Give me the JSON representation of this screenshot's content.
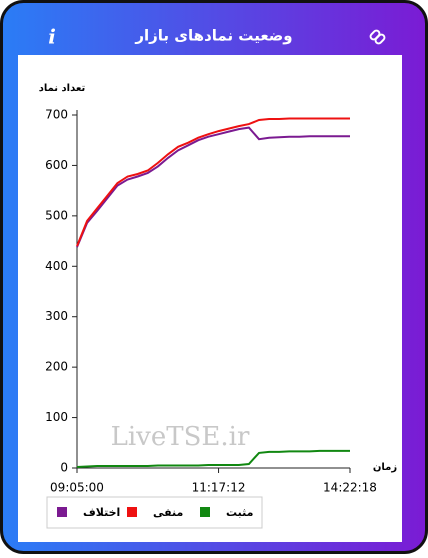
{
  "header": {
    "title": "وضعیت نمادهای بازار",
    "info": "i"
  },
  "chart_data": {
    "type": "line",
    "ylabel": "تعداد نماد",
    "xlabel": "زمان",
    "watermark": "LiveTSE.ir",
    "categories": [
      "09:05:00",
      null,
      null,
      null,
      null,
      null,
      null,
      null,
      null,
      null,
      null,
      null,
      null,
      null,
      "11:17:12",
      null,
      null,
      null,
      null,
      null,
      null,
      null,
      null,
      null,
      null,
      null,
      null,
      "14:22:18"
    ],
    "series": [
      {
        "name": "اختلاف",
        "color": "#7b1a91",
        "values": [
          438,
          486,
          510,
          535,
          560,
          572,
          578,
          585,
          598,
          615,
          630,
          640,
          650,
          657,
          662,
          667,
          672,
          675,
          652,
          655,
          656,
          657,
          657,
          658,
          658,
          658,
          658,
          658
        ]
      },
      {
        "name": "منفی",
        "color": "#ee1111",
        "values": [
          440,
          490,
          515,
          540,
          565,
          578,
          583,
          590,
          605,
          622,
          637,
          645,
          655,
          662,
          668,
          673,
          678,
          682,
          690,
          692,
          692,
          693,
          693,
          693,
          693,
          693,
          693,
          693
        ]
      },
      {
        "name": "مثبت",
        "color": "#118811",
        "values": [
          2,
          3,
          4,
          4,
          4,
          4,
          4,
          4,
          5,
          5,
          5,
          5,
          5,
          6,
          6,
          6,
          6,
          8,
          30,
          32,
          32,
          33,
          33,
          33,
          34,
          34,
          34,
          34
        ]
      }
    ],
    "ylim": [
      0,
      700
    ],
    "yticks": [
      0,
      100,
      200,
      300,
      400,
      500,
      600,
      700
    ],
    "grid": false
  }
}
